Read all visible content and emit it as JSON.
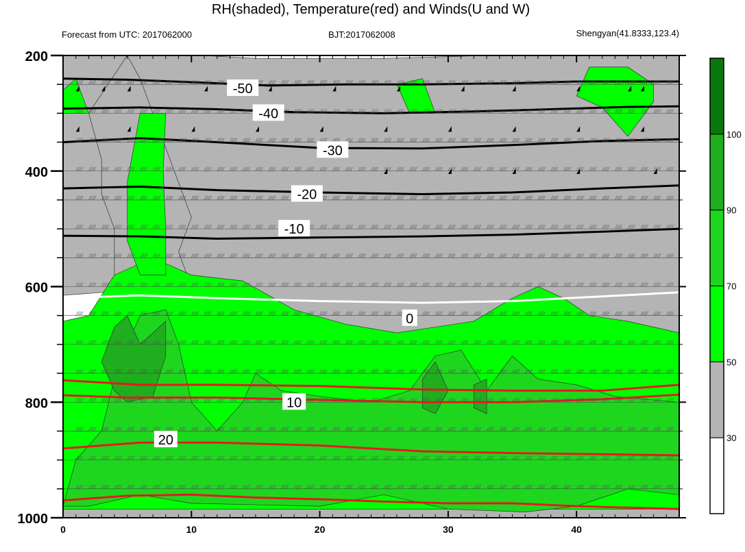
{
  "chart_data": {
    "type": "heatmap",
    "title": "RH(shaded), Temperature(red) and Winds(U and W)",
    "left_header": "Forecast from UTC: 2017062000",
    "center_header": "BJT:2017062008",
    "right_header": "Shengyan(41.8333,123.4)",
    "x_ticks": [
      "0",
      "10",
      "20",
      "30",
      "40"
    ],
    "x_tick_values": [
      0,
      10,
      20,
      30,
      40
    ],
    "xlim": [
      0,
      48
    ],
    "y_ticks": [
      "200",
      "400",
      "600",
      "800",
      "1000"
    ],
    "y_tick_values": [
      200,
      400,
      600,
      800,
      1000
    ],
    "ylim": [
      200,
      1000
    ],
    "y_minor_step": 50,
    "colorbar": {
      "labels": [
        "30",
        "50",
        "70",
        "90",
        "100"
      ],
      "levels": [
        30,
        50,
        70,
        90,
        100
      ],
      "colors": [
        "#ffffff",
        "#b4b4b4",
        "#00ff00",
        "#1fd61f",
        "#1eae1e",
        "#0a780a"
      ]
    },
    "rh_fields": [
      {
        "level": 30,
        "color": "#b4b4b4",
        "polygons": [
          [
            [
              0,
              200
            ],
            [
              5,
              200
            ],
            [
              11,
              200
            ],
            [
              15,
              205
            ],
            [
              25,
              205
            ],
            [
              33,
              200
            ],
            [
              40,
              200
            ],
            [
              48,
              200
            ],
            [
              48,
              700
            ],
            [
              40,
              690
            ],
            [
              30,
              695
            ],
            [
              24,
              695
            ],
            [
              20,
              690
            ],
            [
              16,
              660
            ],
            [
              12,
              620
            ],
            [
              9,
              600
            ],
            [
              0,
              615
            ]
          ],
          [
            [
              0,
              985
            ],
            [
              48,
              985
            ],
            [
              48,
              1000
            ],
            [
              0,
              1000
            ]
          ]
        ]
      },
      {
        "level": 30,
        "color": "#b4b4b4",
        "polygons": [
          [
            [
              2,
              300
            ],
            [
              3,
              380
            ],
            [
              3,
              440
            ],
            [
              4,
              500
            ],
            [
              4,
              580
            ],
            [
              5,
              600
            ],
            [
              10,
              600
            ],
            [
              9,
              540
            ],
            [
              10,
              480
            ],
            [
              9,
              420
            ],
            [
              8,
              360
            ],
            [
              7,
              300
            ],
            [
              6,
              240
            ],
            [
              5,
              200
            ]
          ]
        ]
      },
      {
        "level": 50,
        "color": "#00ff00",
        "polygons": [
          [
            [
              0,
              660
            ],
            [
              2,
              650
            ],
            [
              4,
              580
            ],
            [
              6,
              560
            ],
            [
              8,
              560
            ],
            [
              10,
              580
            ],
            [
              14,
              590
            ],
            [
              18,
              640
            ],
            [
              22,
              665
            ],
            [
              26,
              680
            ],
            [
              32,
              660
            ],
            [
              35,
              620
            ],
            [
              37,
              600
            ],
            [
              39,
              620
            ],
            [
              41,
              650
            ],
            [
              44,
              660
            ],
            [
              48,
              680
            ],
            [
              48,
              985
            ],
            [
              0,
              985
            ]
          ],
          [
            [
              6,
              300
            ],
            [
              5.5,
              360
            ],
            [
              5,
              420
            ],
            [
              5,
              520
            ],
            [
              6,
              580
            ],
            [
              8,
              580
            ],
            [
              8,
              500
            ],
            [
              7.8,
              400
            ],
            [
              8,
              300
            ]
          ],
          [
            [
              0,
              260
            ],
            [
              1,
              240
            ],
            [
              2,
              300
            ],
            [
              0,
              300
            ]
          ],
          [
            [
              26,
              250
            ],
            [
              28,
              240
            ],
            [
              29,
              300
            ],
            [
              27,
              300
            ]
          ],
          [
            [
              41,
              220
            ],
            [
              44,
              220
            ],
            [
              46,
              250
            ],
            [
              46,
              280
            ],
            [
              44,
              340
            ],
            [
              42,
              290
            ],
            [
              40,
              270
            ]
          ]
        ]
      },
      {
        "level": 70,
        "color": "#1fd61f",
        "polygons": [
          [
            [
              0,
              980
            ],
            [
              1,
              900
            ],
            [
              3,
              850
            ],
            [
              4,
              760
            ],
            [
              5,
              700
            ],
            [
              6,
              650
            ],
            [
              8,
              640
            ],
            [
              9,
              700
            ],
            [
              10,
              800
            ],
            [
              12,
              850
            ],
            [
              14,
              800
            ],
            [
              15,
              750
            ],
            [
              17,
              780
            ],
            [
              20,
              790
            ],
            [
              24,
              800
            ],
            [
              27,
              780
            ],
            [
              29,
              720
            ],
            [
              31,
              710
            ],
            [
              33,
              780
            ],
            [
              35,
              720
            ],
            [
              37,
              760
            ],
            [
              40,
              770
            ],
            [
              43,
              790
            ],
            [
              48,
              800
            ],
            [
              48,
              960
            ],
            [
              44,
              950
            ],
            [
              40,
              980
            ],
            [
              36,
              990
            ],
            [
              30,
              985
            ],
            [
              25,
              960
            ],
            [
              20,
              980
            ],
            [
              10,
              975
            ],
            [
              6,
              960
            ],
            [
              2,
              980
            ]
          ]
        ]
      },
      {
        "level": 90,
        "color": "#1eae1e",
        "polygons": [
          [
            [
              3,
              730
            ],
            [
              4,
              670
            ],
            [
              5,
              650
            ],
            [
              6,
              700
            ],
            [
              7,
              680
            ],
            [
              8,
              660
            ],
            [
              8,
              720
            ],
            [
              7,
              790
            ],
            [
              5,
              800
            ],
            [
              4,
              780
            ]
          ],
          [
            [
              28,
              760
            ],
            [
              29,
              730
            ],
            [
              30,
              780
            ],
            [
              29,
              820
            ],
            [
              28,
              810
            ]
          ],
          [
            [
              32,
              770
            ],
            [
              33,
              760
            ],
            [
              33,
              820
            ],
            [
              32,
              810
            ]
          ]
        ]
      }
    ],
    "temperature_contours": [
      {
        "label": "-50",
        "label_at": [
          14,
          257
        ],
        "points": [
          [
            0,
            240
          ],
          [
            5,
            242
          ],
          [
            11,
            247
          ],
          [
            16,
            252
          ],
          [
            22,
            250
          ],
          [
            28,
            250
          ],
          [
            35,
            248
          ],
          [
            40,
            245
          ],
          [
            48,
            245
          ]
        ]
      },
      {
        "label": "-40",
        "label_at": [
          16,
          300
        ],
        "points": [
          [
            0,
            292
          ],
          [
            6,
            290
          ],
          [
            12,
            293
          ],
          [
            18,
            298
          ],
          [
            25,
            300
          ],
          [
            32,
            297
          ],
          [
            38,
            293
          ],
          [
            44,
            289
          ],
          [
            48,
            288
          ]
        ]
      },
      {
        "label": "-30",
        "label_at": [
          21,
          364
        ],
        "points": [
          [
            0,
            350
          ],
          [
            6,
            343
          ],
          [
            12,
            350
          ],
          [
            20,
            360
          ],
          [
            28,
            361
          ],
          [
            35,
            355
          ],
          [
            42,
            348
          ],
          [
            48,
            345
          ]
        ]
      },
      {
        "label": "-20",
        "label_at": [
          19,
          440
        ],
        "points": [
          [
            0,
            430
          ],
          [
            6,
            427
          ],
          [
            12,
            433
          ],
          [
            20,
            437
          ],
          [
            28,
            440
          ],
          [
            35,
            437
          ],
          [
            42,
            430
          ],
          [
            48,
            425
          ]
        ]
      },
      {
        "label": "-10",
        "label_at": [
          18,
          500
        ],
        "points": [
          [
            0,
            512
          ],
          [
            6,
            513
          ],
          [
            12,
            517
          ],
          [
            20,
            515
          ],
          [
            28,
            513
          ],
          [
            35,
            510
          ],
          [
            42,
            505
          ],
          [
            48,
            500
          ]
        ]
      },
      {
        "label": "0",
        "label_at": [
          27,
          655
        ],
        "color": "#ffffff",
        "points": [
          [
            0,
            620
          ],
          [
            6,
            615
          ],
          [
            12,
            620
          ],
          [
            20,
            625
          ],
          [
            28,
            628
          ],
          [
            35,
            625
          ],
          [
            42,
            617
          ],
          [
            48,
            610
          ]
        ]
      }
    ],
    "red_contours": [
      {
        "label": "10",
        "label_at": [
          18,
          800
        ],
        "points": [
          [
            0,
            762
          ],
          [
            6,
            770
          ],
          [
            12,
            770
          ],
          [
            20,
            772
          ],
          [
            28,
            778
          ],
          [
            35,
            780
          ],
          [
            42,
            780
          ],
          [
            48,
            770
          ]
        ]
      },
      {
        "label": "",
        "points": [
          [
            0,
            788
          ],
          [
            5,
            792
          ],
          [
            12,
            792
          ],
          [
            20,
            796
          ],
          [
            28,
            800
          ],
          [
            35,
            800
          ],
          [
            42,
            795
          ],
          [
            48,
            787
          ]
        ]
      },
      {
        "label": "20",
        "label_at": [
          8,
          865
        ],
        "points": [
          [
            0,
            880
          ],
          [
            6,
            870
          ],
          [
            12,
            870
          ],
          [
            20,
            875
          ],
          [
            28,
            885
          ],
          [
            35,
            888
          ],
          [
            42,
            890
          ],
          [
            48,
            892
          ]
        ]
      },
      {
        "label": "",
        "points": [
          [
            0,
            970
          ],
          [
            5,
            962
          ],
          [
            10,
            960
          ],
          [
            15,
            965
          ],
          [
            20,
            968
          ],
          [
            25,
            972
          ],
          [
            30,
            975
          ],
          [
            35,
            975
          ],
          [
            40,
            980
          ],
          [
            48,
            985
          ]
        ]
      }
    ],
    "wind_barbs": "shown",
    "grid": "lines at 50 hPa"
  }
}
